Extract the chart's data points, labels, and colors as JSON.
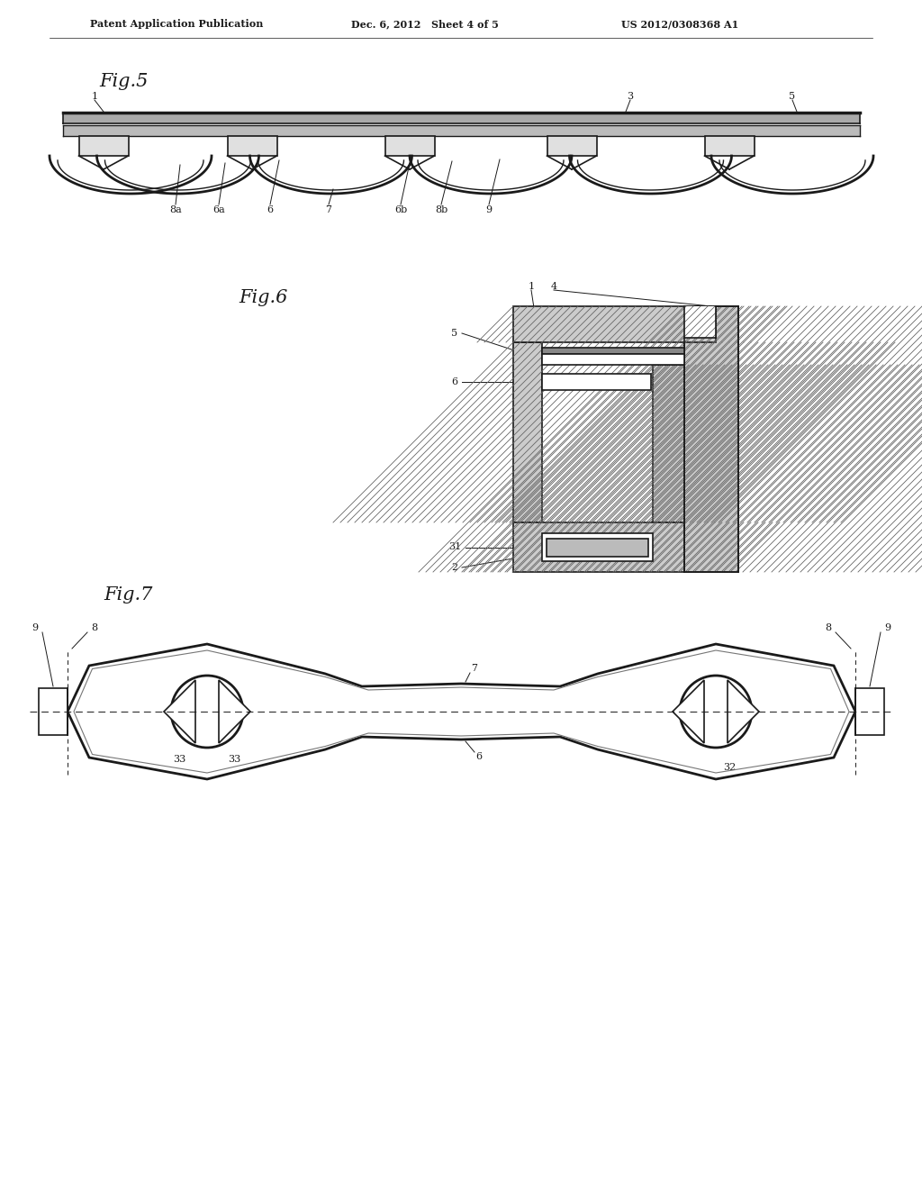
{
  "bg_color": "#ffffff",
  "header_left": "Patent Application Publication",
  "header_mid": "Dec. 6, 2012   Sheet 4 of 5",
  "header_right": "US 2012/0308368 A1",
  "fig5_label": "Fig.5",
  "fig6_label": "Fig.6",
  "fig7_label": "Fig.7",
  "line_color": "#1a1a1a",
  "label_color": "#1a1a1a",
  "hatch_face": "#cccccc"
}
